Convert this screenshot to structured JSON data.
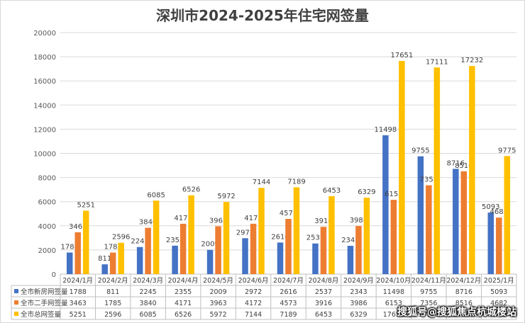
{
  "chart_data": {
    "type": "bar",
    "title": "深圳市2024-2025年住宅网签量",
    "categories": [
      "2024/1月",
      "2024/2月",
      "2024/3月",
      "2024/4月",
      "2024/5月",
      "2024/6月",
      "2024/7月",
      "2024/8月",
      "2024/9月",
      "2024/10月",
      "2024/11月",
      "2024/12月",
      "2025/1月"
    ],
    "series": [
      {
        "name": "全市新房网签量",
        "color": "#4472c4",
        "values": [
          1788,
          811,
          2245,
          2355,
          2009,
          2972,
          2616,
          2537,
          2343,
          11498,
          9755,
          8716,
          5093
        ]
      },
      {
        "name": "全市二手网签量",
        "color": "#ed7d31",
        "values": [
          3463,
          1785,
          3840,
          4171,
          3963,
          4172,
          4573,
          3916,
          3986,
          6153,
          7356,
          8516,
          4682
        ]
      },
      {
        "name": "全市总网签量",
        "color": "#ffc000",
        "values": [
          5251,
          2596,
          6085,
          6526,
          5972,
          7144,
          7189,
          6453,
          6329,
          17651,
          17111,
          17232,
          9775
        ]
      }
    ],
    "ylim": [
      0,
      20000
    ],
    "yticks": [
      "0",
      "2000",
      "4000",
      "6000",
      "8000",
      "10000",
      "12000",
      "14000",
      "16000",
      "18000",
      "20000"
    ],
    "grid": true,
    "legend": "data-table-left"
  },
  "watermark": "搜狐号@搜狐焦点杭城楼站"
}
